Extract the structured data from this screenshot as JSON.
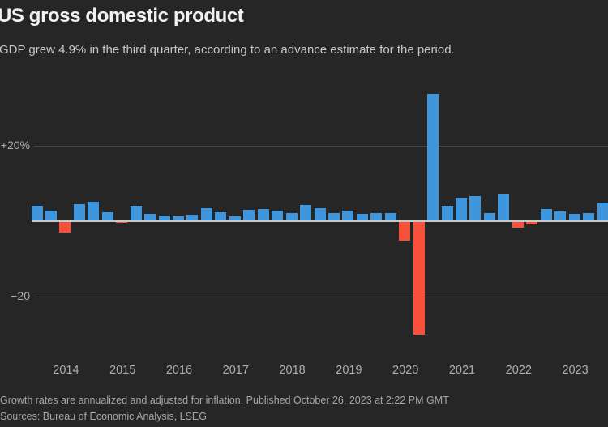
{
  "header": {
    "title": "US gross domestic product",
    "subtitle": "GDP grew 4.9% in the third quarter, according to an advance estimate for the period."
  },
  "chart_data": {
    "type": "bar",
    "title": "US gross domestic product",
    "subtitle": "GDP grew 4.9% in the third quarter, according to an advance estimate for the period.",
    "unit": "percent, annualized quarter-over-quarter real GDP growth",
    "x": [
      "2013 Q3",
      "2013 Q4",
      "2014 Q1",
      "2014 Q2",
      "2014 Q3",
      "2014 Q4",
      "2015 Q1",
      "2015 Q2",
      "2015 Q3",
      "2015 Q4",
      "2016 Q1",
      "2016 Q2",
      "2016 Q3",
      "2016 Q4",
      "2017 Q1",
      "2017 Q2",
      "2017 Q3",
      "2017 Q4",
      "2018 Q1",
      "2018 Q2",
      "2018 Q3",
      "2018 Q4",
      "2019 Q1",
      "2019 Q2",
      "2019 Q3",
      "2019 Q4",
      "2020 Q1",
      "2020 Q2",
      "2020 Q3",
      "2020 Q4",
      "2021 Q1",
      "2021 Q2",
      "2021 Q3",
      "2021 Q4",
      "2022 Q1",
      "2022 Q2",
      "2022 Q3",
      "2022 Q4",
      "2023 Q1",
      "2023 Q2",
      "2023 Q3"
    ],
    "values": [
      4.1,
      2.8,
      -2.9,
      4.6,
      5.2,
      2.4,
      -0.3,
      4.1,
      2.0,
      1.5,
      1.3,
      1.7,
      3.5,
      2.3,
      1.2,
      3.1,
      3.2,
      2.9,
      2.2,
      4.2,
      3.4,
      2.2,
      2.9,
      2.0,
      2.1,
      2.1,
      -5.0,
      -29.9,
      33.8,
      4.1,
      6.3,
      6.7,
      2.1,
      7.0,
      -1.6,
      -0.6,
      3.2,
      2.6,
      2.0,
      2.1,
      4.9
    ],
    "ylim": [
      -34,
      36
    ],
    "grid": "horizontal",
    "legend": "none",
    "y_axis_labels": [
      {
        "value": 20,
        "text": "+20%"
      },
      {
        "value": -20,
        "text": "−20"
      }
    ],
    "year_ticks": [
      "2014",
      "2015",
      "2016",
      "2017",
      "2018",
      "2019",
      "2020",
      "2021",
      "2022",
      "2023"
    ],
    "colors": {
      "positive": "#4096dd",
      "negative": "#f8503a",
      "baseline": "#cbc8c4",
      "gridline": "#464646",
      "background": "#262626"
    }
  },
  "footer": {
    "note": "Growth rates are annualized and adjusted for inflation. Published October 26, 2023 at 2:22 PM GMT",
    "sources": "Sources: Bureau of Economic Analysis, LSEG"
  }
}
